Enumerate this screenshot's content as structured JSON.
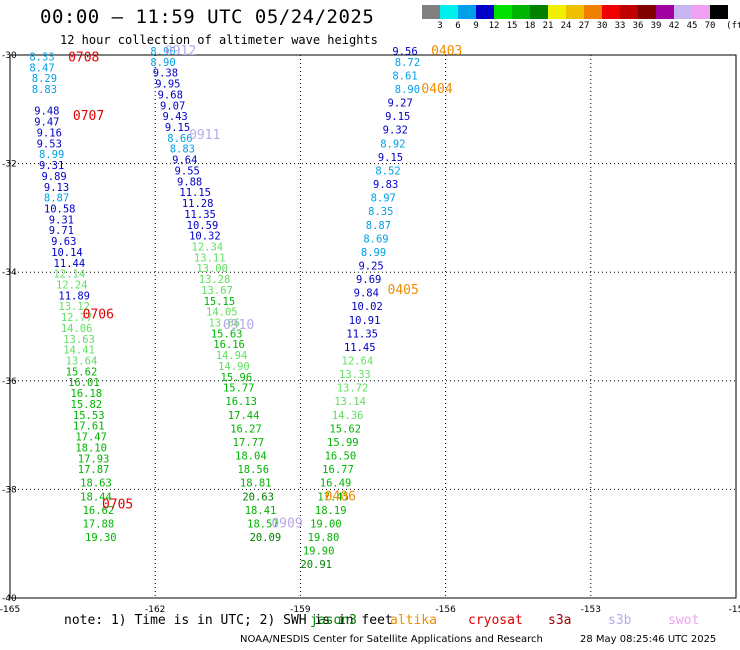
{
  "header": {
    "title": "00:00 – 11:59 UTC 05/24/2025",
    "subtitle": "12 hour collection of altimeter wave heights"
  },
  "colorbar": {
    "unit": "(ft)",
    "bins": [
      {
        "label": "3",
        "color": "#808080"
      },
      {
        "label": "6",
        "color": "#00f0f0"
      },
      {
        "label": "9",
        "color": "#00a0e8"
      },
      {
        "label": "12",
        "color": "#0000c8"
      },
      {
        "label": "15",
        "color": "#00e000"
      },
      {
        "label": "18",
        "color": "#00b400"
      },
      {
        "label": "21",
        "color": "#008200"
      },
      {
        "label": "24",
        "color": "#f0f000"
      },
      {
        "label": "27",
        "color": "#f0c000"
      },
      {
        "label": "30",
        "color": "#f08000"
      },
      {
        "label": "33",
        "color": "#f00000"
      },
      {
        "label": "36",
        "color": "#c00000"
      },
      {
        "label": "39",
        "color": "#800000"
      },
      {
        "label": "42",
        "color": "#a000a0"
      },
      {
        "label": "45",
        "color": "#c8b4f0"
      },
      {
        "label": "70",
        "color": "#f0a0f0"
      },
      {
        "label": "",
        "color": "#000000"
      }
    ]
  },
  "axes": {
    "lon_ticks": [
      "-165",
      "-162",
      "-159",
      "-156",
      "-153",
      "-15"
    ],
    "lat_ticks": [
      "-30",
      "-32",
      "-34",
      "-36",
      "-38",
      "-40"
    ]
  },
  "pass_labels": [
    {
      "text": "0708",
      "lon": -163.8,
      "lat": -30.12,
      "color": "#e00000"
    },
    {
      "text": "0707",
      "lon": -163.7,
      "lat": -31.2,
      "color": "#e00000"
    },
    {
      "text": "0706",
      "lon": -163.5,
      "lat": -34.85,
      "color": "#e00000"
    },
    {
      "text": "0705",
      "lon": -163.1,
      "lat": -38.35,
      "color": "#e00000"
    },
    {
      "text": "0912",
      "lon": -161.8,
      "lat": -30.0,
      "color": "#b8a8e8"
    },
    {
      "text": "0911",
      "lon": -161.3,
      "lat": -31.55,
      "color": "#b8a8e8"
    },
    {
      "text": "0910",
      "lon": -160.6,
      "lat": -35.05,
      "color": "#b8a8e8"
    },
    {
      "text": "0909",
      "lon": -159.6,
      "lat": -38.7,
      "color": "#b8a8e8"
    },
    {
      "text": "0403",
      "lon": -156.3,
      "lat": -30.0,
      "color": "#f08c00"
    },
    {
      "text": "0404",
      "lon": -156.5,
      "lat": -30.7,
      "color": "#f08c00"
    },
    {
      "text": "0405",
      "lon": -157.2,
      "lat": -34.4,
      "color": "#f08c00"
    },
    {
      "text": "0406",
      "lon": -158.5,
      "lat": -38.2,
      "color": "#f08c00"
    }
  ],
  "tracks": [
    {
      "name": "0708/0707/0706/0705",
      "points": [
        {
          "v": "8.33",
          "lon": -164.6,
          "lat": -30.1,
          "color": "#00a0e8"
        },
        {
          "v": "8.47",
          "lon": -164.6,
          "lat": -30.3,
          "color": "#00a0e8"
        },
        {
          "v": "8.29",
          "lon": -164.55,
          "lat": -30.5,
          "color": "#00a0e8"
        },
        {
          "v": "8.83",
          "lon": -164.55,
          "lat": -30.7,
          "color": "#00a0e8"
        },
        {
          "v": "9.48",
          "lon": -164.5,
          "lat": -31.1,
          "color": "#0000c8"
        },
        {
          "v": "9.47",
          "lon": -164.5,
          "lat": -31.3,
          "color": "#0000c8"
        },
        {
          "v": "9.16",
          "lon": -164.45,
          "lat": -31.5,
          "color": "#0000c8"
        },
        {
          "v": "9.53",
          "lon": -164.45,
          "lat": -31.7,
          "color": "#0000c8"
        },
        {
          "v": "8.99",
          "lon": -164.4,
          "lat": -31.9,
          "color": "#00a0e8"
        },
        {
          "v": "9.31",
          "lon": -164.4,
          "lat": -32.1,
          "color": "#0000c8"
        },
        {
          "v": "9.89",
          "lon": -164.35,
          "lat": -32.3,
          "color": "#0000c8"
        },
        {
          "v": "9.13",
          "lon": -164.3,
          "lat": -32.5,
          "color": "#0000c8"
        },
        {
          "v": "8.87",
          "lon": -164.3,
          "lat": -32.7,
          "color": "#00a0e8"
        },
        {
          "v": "10.58",
          "lon": -164.3,
          "lat": -32.9,
          "color": "#0000c8"
        },
        {
          "v": "9.31",
          "lon": -164.2,
          "lat": -33.1,
          "color": "#0000c8"
        },
        {
          "v": "9.71",
          "lon": -164.2,
          "lat": -33.3,
          "color": "#0000c8"
        },
        {
          "v": "9.63",
          "lon": -164.15,
          "lat": -33.5,
          "color": "#0000c8"
        },
        {
          "v": "10.14",
          "lon": -164.15,
          "lat": -33.7,
          "color": "#0000c8"
        },
        {
          "v": "11.44",
          "lon": -164.1,
          "lat": -33.9,
          "color": "#0000c8"
        },
        {
          "v": "12.14",
          "lon": -164.1,
          "lat": -34.1,
          "color": "#60e060"
        },
        {
          "v": "12.24",
          "lon": -164.05,
          "lat": -34.3,
          "color": "#60e060"
        },
        {
          "v": "11.89",
          "lon": -164.0,
          "lat": -34.5,
          "color": "#0000c8"
        },
        {
          "v": "13.12",
          "lon": -164.0,
          "lat": -34.7,
          "color": "#60e060"
        },
        {
          "v": "12.77",
          "lon": -163.95,
          "lat": -34.9,
          "color": "#60e060"
        },
        {
          "v": "14.06",
          "lon": -163.95,
          "lat": -35.1,
          "color": "#60e060"
        },
        {
          "v": "13.63",
          "lon": -163.9,
          "lat": -35.3,
          "color": "#60e060"
        },
        {
          "v": "14.41",
          "lon": -163.9,
          "lat": -35.5,
          "color": "#60e060"
        },
        {
          "v": "13.64",
          "lon": -163.85,
          "lat": -35.7,
          "color": "#60e060"
        },
        {
          "v": "15.62",
          "lon": -163.85,
          "lat": -35.9,
          "color": "#00b400"
        },
        {
          "v": "16.01",
          "lon": -163.8,
          "lat": -36.1,
          "color": "#00b400"
        },
        {
          "v": "16.18",
          "lon": -163.75,
          "lat": -36.3,
          "color": "#00b400"
        },
        {
          "v": "15.82",
          "lon": -163.75,
          "lat": -36.5,
          "color": "#00b400"
        },
        {
          "v": "15.53",
          "lon": -163.7,
          "lat": -36.7,
          "color": "#00b400"
        },
        {
          "v": "17.61",
          "lon": -163.7,
          "lat": -36.9,
          "color": "#00b400"
        },
        {
          "v": "17.47",
          "lon": -163.65,
          "lat": -37.1,
          "color": "#00b400"
        },
        {
          "v": "18.10",
          "lon": -163.65,
          "lat": -37.3,
          "color": "#00b400"
        },
        {
          "v": "17.93",
          "lon": -163.6,
          "lat": -37.5,
          "color": "#00b400"
        },
        {
          "v": "17.87",
          "lon": -163.6,
          "lat": -37.7,
          "color": "#00b400"
        },
        {
          "v": "18.63",
          "lon": -163.55,
          "lat": -37.95,
          "color": "#00b400"
        },
        {
          "v": "18.44",
          "lon": -163.55,
          "lat": -38.2,
          "color": "#00b400"
        },
        {
          "v": "16.62",
          "lon": -163.5,
          "lat": -38.45,
          "color": "#00b400"
        },
        {
          "v": "17.88",
          "lon": -163.5,
          "lat": -38.7,
          "color": "#00b400"
        },
        {
          "v": "19.30",
          "lon": -163.45,
          "lat": -38.95,
          "color": "#00b400"
        }
      ]
    },
    {
      "name": "0912/0911/0910/0909",
      "points": [
        {
          "v": "8.90",
          "lon": -162.1,
          "lat": -30.0,
          "color": "#00a0e8"
        },
        {
          "v": "8.90",
          "lon": -162.1,
          "lat": -30.2,
          "color": "#00a0e8"
        },
        {
          "v": "9.38",
          "lon": -162.05,
          "lat": -30.4,
          "color": "#0000c8"
        },
        {
          "v": "9.95",
          "lon": -162.0,
          "lat": -30.6,
          "color": "#0000c8"
        },
        {
          "v": "9.68",
          "lon": -161.95,
          "lat": -30.8,
          "color": "#0000c8"
        },
        {
          "v": "9.07",
          "lon": -161.9,
          "lat": -31.0,
          "color": "#0000c8"
        },
        {
          "v": "9.43",
          "lon": -161.85,
          "lat": -31.2,
          "color": "#0000c8"
        },
        {
          "v": "9.15",
          "lon": -161.8,
          "lat": -31.4,
          "color": "#0000c8"
        },
        {
          "v": "8.66",
          "lon": -161.75,
          "lat": -31.6,
          "color": "#00a0e8"
        },
        {
          "v": "8.83",
          "lon": -161.7,
          "lat": -31.8,
          "color": "#00a0e8"
        },
        {
          "v": "9.64",
          "lon": -161.65,
          "lat": -32.0,
          "color": "#0000c8"
        },
        {
          "v": "9.55",
          "lon": -161.6,
          "lat": -32.2,
          "color": "#0000c8"
        },
        {
          "v": "9.88",
          "lon": -161.55,
          "lat": -32.4,
          "color": "#0000c8"
        },
        {
          "v": "11.15",
          "lon": -161.5,
          "lat": -32.6,
          "color": "#0000c8"
        },
        {
          "v": "11.28",
          "lon": -161.45,
          "lat": -32.8,
          "color": "#0000c8"
        },
        {
          "v": "11.35",
          "lon": -161.4,
          "lat": -33.0,
          "color": "#0000c8"
        },
        {
          "v": "10.59",
          "lon": -161.35,
          "lat": -33.2,
          "color": "#0000c8"
        },
        {
          "v": "10.32",
          "lon": -161.3,
          "lat": -33.4,
          "color": "#0000c8"
        },
        {
          "v": "12.34",
          "lon": -161.25,
          "lat": -33.6,
          "color": "#60e060"
        },
        {
          "v": "13.11",
          "lon": -161.2,
          "lat": -33.8,
          "color": "#60e060"
        },
        {
          "v": "13.00",
          "lon": -161.15,
          "lat": -34.0,
          "color": "#60e060"
        },
        {
          "v": "13.28",
          "lon": -161.1,
          "lat": -34.2,
          "color": "#60e060"
        },
        {
          "v": "13.67",
          "lon": -161.05,
          "lat": -34.4,
          "color": "#60e060"
        },
        {
          "v": "15.15",
          "lon": -161.0,
          "lat": -34.6,
          "color": "#00b400"
        },
        {
          "v": "14.05",
          "lon": -160.95,
          "lat": -34.8,
          "color": "#60e060"
        },
        {
          "v": "13.66",
          "lon": -160.9,
          "lat": -35.0,
          "color": "#60e060"
        },
        {
          "v": "15.63",
          "lon": -160.85,
          "lat": -35.2,
          "color": "#00b400"
        },
        {
          "v": "16.16",
          "lon": -160.8,
          "lat": -35.4,
          "color": "#00b400"
        },
        {
          "v": "14.94",
          "lon": -160.75,
          "lat": -35.6,
          "color": "#60e060"
        },
        {
          "v": "14.90",
          "lon": -160.7,
          "lat": -35.8,
          "color": "#60e060"
        },
        {
          "v": "15.96",
          "lon": -160.65,
          "lat": -36.0,
          "color": "#00b400"
        },
        {
          "v": "15.77",
          "lon": -160.6,
          "lat": -36.2,
          "color": "#00b400"
        },
        {
          "v": "16.13",
          "lon": -160.55,
          "lat": -36.45,
          "color": "#00b400"
        },
        {
          "v": "17.44",
          "lon": -160.5,
          "lat": -36.7,
          "color": "#00b400"
        },
        {
          "v": "16.27",
          "lon": -160.45,
          "lat": -36.95,
          "color": "#00b400"
        },
        {
          "v": "17.77",
          "lon": -160.4,
          "lat": -37.2,
          "color": "#00b400"
        },
        {
          "v": "18.04",
          "lon": -160.35,
          "lat": -37.45,
          "color": "#00b400"
        },
        {
          "v": "18.56",
          "lon": -160.3,
          "lat": -37.7,
          "color": "#00b400"
        },
        {
          "v": "18.81",
          "lon": -160.25,
          "lat": -37.95,
          "color": "#00b400"
        },
        {
          "v": "20.63",
          "lon": -160.2,
          "lat": -38.2,
          "color": "#008200"
        },
        {
          "v": "18.41",
          "lon": -160.15,
          "lat": -38.45,
          "color": "#00b400"
        },
        {
          "v": "18.57",
          "lon": -160.1,
          "lat": -38.7,
          "color": "#00b400"
        },
        {
          "v": "20.09",
          "lon": -160.05,
          "lat": -38.95,
          "color": "#008200"
        }
      ]
    },
    {
      "name": "0403/0404/0405/0406",
      "points": [
        {
          "v": "9.56",
          "lon": -157.1,
          "lat": -30.0,
          "color": "#0000c8"
        },
        {
          "v": "8.72",
          "lon": -157.05,
          "lat": -30.2,
          "color": "#00a0e8"
        },
        {
          "v": "8.61",
          "lon": -157.1,
          "lat": -30.45,
          "color": "#00a0e8"
        },
        {
          "v": "8.90",
          "lon": -157.05,
          "lat": -30.7,
          "color": "#00a0e8"
        },
        {
          "v": "9.27",
          "lon": -157.2,
          "lat": -30.95,
          "color": "#0000c8"
        },
        {
          "v": "9.15",
          "lon": -157.25,
          "lat": -31.2,
          "color": "#0000c8"
        },
        {
          "v": "9.32",
          "lon": -157.3,
          "lat": -31.45,
          "color": "#0000c8"
        },
        {
          "v": "8.92",
          "lon": -157.35,
          "lat": -31.7,
          "color": "#00a0e8"
        },
        {
          "v": "9.15",
          "lon": -157.4,
          "lat": -31.95,
          "color": "#0000c8"
        },
        {
          "v": "8.52",
          "lon": -157.45,
          "lat": -32.2,
          "color": "#00a0e8"
        },
        {
          "v": "9.83",
          "lon": -157.5,
          "lat": -32.45,
          "color": "#0000c8"
        },
        {
          "v": "8.97",
          "lon": -157.55,
          "lat": -32.7,
          "color": "#00a0e8"
        },
        {
          "v": "8.35",
          "lon": -157.6,
          "lat": -32.95,
          "color": "#00a0e8"
        },
        {
          "v": "8.87",
          "lon": -157.65,
          "lat": -33.2,
          "color": "#00a0e8"
        },
        {
          "v": "8.69",
          "lon": -157.7,
          "lat": -33.45,
          "color": "#00a0e8"
        },
        {
          "v": "8.99",
          "lon": -157.75,
          "lat": -33.7,
          "color": "#00a0e8"
        },
        {
          "v": "9.25",
          "lon": -157.8,
          "lat": -33.95,
          "color": "#0000c8"
        },
        {
          "v": "9.69",
          "lon": -157.85,
          "lat": -34.2,
          "color": "#0000c8"
        },
        {
          "v": "9.84",
          "lon": -157.9,
          "lat": -34.45,
          "color": "#0000c8"
        },
        {
          "v": "10.02",
          "lon": -157.95,
          "lat": -34.7,
          "color": "#0000c8"
        },
        {
          "v": "10.91",
          "lon": -158.0,
          "lat": -34.95,
          "color": "#0000c8"
        },
        {
          "v": "11.35",
          "lon": -158.05,
          "lat": -35.2,
          "color": "#0000c8"
        },
        {
          "v": "11.45",
          "lon": -158.1,
          "lat": -35.45,
          "color": "#0000c8"
        },
        {
          "v": "12.64",
          "lon": -158.15,
          "lat": -35.7,
          "color": "#60e060"
        },
        {
          "v": "13.33",
          "lon": -158.2,
          "lat": -35.95,
          "color": "#60e060"
        },
        {
          "v": "13.72",
          "lon": -158.25,
          "lat": -36.2,
          "color": "#60e060"
        },
        {
          "v": "13.14",
          "lon": -158.3,
          "lat": -36.45,
          "color": "#60e060"
        },
        {
          "v": "14.36",
          "lon": -158.35,
          "lat": -36.7,
          "color": "#60e060"
        },
        {
          "v": "15.62",
          "lon": -158.4,
          "lat": -36.95,
          "color": "#00b400"
        },
        {
          "v": "15.99",
          "lon": -158.45,
          "lat": -37.2,
          "color": "#00b400"
        },
        {
          "v": "16.50",
          "lon": -158.5,
          "lat": -37.45,
          "color": "#00b400"
        },
        {
          "v": "16.77",
          "lon": -158.55,
          "lat": -37.7,
          "color": "#00b400"
        },
        {
          "v": "16.49",
          "lon": -158.6,
          "lat": -37.95,
          "color": "#00b400"
        },
        {
          "v": "17.45",
          "lon": -158.65,
          "lat": -38.2,
          "color": "#00b400"
        },
        {
          "v": "18.19",
          "lon": -158.7,
          "lat": -38.45,
          "color": "#00b400"
        },
        {
          "v": "19.00",
          "lon": -158.8,
          "lat": -38.7,
          "color": "#00b400"
        },
        {
          "v": "19.80",
          "lon": -158.85,
          "lat": -38.95,
          "color": "#00b400"
        },
        {
          "v": "19.90",
          "lon": -158.95,
          "lat": -39.2,
          "color": "#00b400"
        },
        {
          "v": "20.91",
          "lon": -159.0,
          "lat": -39.45,
          "color": "#008200"
        }
      ]
    }
  ],
  "footer": {
    "note": "note: 1) Time is in UTC; 2) SWH is in feet",
    "legend": [
      {
        "text": "jason3",
        "color": "#008200"
      },
      {
        "text": "altika",
        "color": "#f08c00"
      },
      {
        "text": "cryosat",
        "color": "#e00000"
      },
      {
        "text": "s3a",
        "color": "#a00000"
      },
      {
        "text": "s3b",
        "color": "#b8a8e8"
      },
      {
        "text": "swot",
        "color": "#f0a0f0"
      }
    ],
    "credit": "NOAA/NESDIS Center for Satellite Applications and Research",
    "timestamp": "28 May 08:25:46 UTC 2025"
  }
}
